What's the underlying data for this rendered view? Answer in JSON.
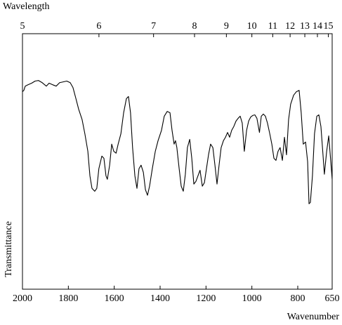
{
  "chart_data": {
    "type": "line",
    "xlabel": "Wavenumber",
    "ylabel": "Transmittance",
    "x2label": "Wavelength",
    "xlim": [
      2000,
      650
    ],
    "xticks": [
      2000,
      1800,
      1600,
      1400,
      1200,
      1000,
      800,
      650
    ],
    "x2scale": "reciprocal",
    "x2ticks": [
      5,
      6,
      7,
      8,
      9,
      10,
      11,
      12,
      13,
      14,
      15
    ],
    "ylim": [
      0,
      96
    ],
    "grid": false,
    "series": [
      {
        "name": null,
        "color": "#000000",
        "x": [
          2000,
          1994,
          1988,
          1976,
          1960,
          1945,
          1930,
          1914,
          1896,
          1884,
          1868,
          1853,
          1838,
          1822,
          1807,
          1792,
          1780,
          1767,
          1755,
          1740,
          1728,
          1715,
          1706,
          1697,
          1685,
          1676,
          1667,
          1654,
          1645,
          1636,
          1630,
          1620,
          1611,
          1602,
          1592,
          1583,
          1571,
          1559,
          1547,
          1538,
          1529,
          1520,
          1510,
          1501,
          1492,
          1483,
          1473,
          1464,
          1455,
          1446,
          1434,
          1421,
          1409,
          1394,
          1382,
          1369,
          1357,
          1348,
          1339,
          1333,
          1327,
          1317,
          1308,
          1299,
          1290,
          1281,
          1271,
          1262,
          1253,
          1244,
          1235,
          1226,
          1216,
          1207,
          1198,
          1189,
          1180,
          1170,
          1161,
          1152,
          1143,
          1134,
          1124,
          1115,
          1106,
          1097,
          1088,
          1079,
          1069,
          1060,
          1051,
          1042,
          1033,
          1023,
          1014,
          1005,
          996,
          987,
          978,
          967,
          959,
          950,
          941,
          932,
          922,
          913,
          904,
          895,
          886,
          877,
          867,
          858,
          849,
          840,
          831,
          818,
          806,
          794,
          785,
          776,
          766,
          757,
          751,
          745,
          736,
          727,
          717,
          708,
          699,
          690,
          684,
          674,
          665,
          656,
          650
        ],
        "values": [
          74.2,
          74.7,
          76.3,
          76.8,
          77.4,
          78.2,
          78.4,
          77.6,
          76.3,
          77.4,
          76.8,
          76.3,
          77.6,
          77.9,
          78.2,
          77.6,
          75.8,
          71.6,
          67.6,
          63.7,
          58.4,
          51.8,
          42.6,
          37.9,
          36.8,
          37.9,
          45.3,
          50,
          49.2,
          42.6,
          41.3,
          46.6,
          54.5,
          51.8,
          51.1,
          54.5,
          58.4,
          66.3,
          71.6,
          72.4,
          66.3,
          53.2,
          42.6,
          37.9,
          45.3,
          46.6,
          43.9,
          37.4,
          35.3,
          38.7,
          45.3,
          51.8,
          55.8,
          59.7,
          65,
          66.8,
          66.3,
          59.7,
          54.5,
          55.8,
          53.2,
          45.3,
          38.7,
          36.8,
          43.2,
          53.2,
          56.3,
          49.2,
          39.5,
          40.5,
          42.6,
          44.7,
          38.7,
          40,
          45.3,
          50.5,
          54.5,
          53.2,
          46.6,
          39.5,
          46.6,
          53.2,
          55.8,
          57.1,
          58.9,
          57.1,
          59.7,
          61.1,
          63.2,
          64.2,
          65,
          62.4,
          51.8,
          59.7,
          63.2,
          64.7,
          65.3,
          65.5,
          64.2,
          58.9,
          65,
          65.8,
          65,
          62.4,
          58.4,
          54.5,
          49.2,
          48.4,
          51.8,
          53.2,
          48.4,
          57.1,
          50.5,
          63.7,
          69.5,
          72.9,
          74.2,
          74.7,
          66.3,
          54.5,
          55.3,
          47.9,
          32.1,
          32.6,
          42.6,
          58.4,
          65,
          65.5,
          61.1,
          50.5,
          43.2,
          51.8,
          57.6,
          47.9,
          41.3
        ]
      }
    ]
  }
}
